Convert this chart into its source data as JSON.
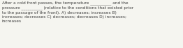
{
  "text": "After a cold front passes, the temperature __________ and the\npressure __________ (relative to the conditions that existed prior\nto the passage of the front). A) decreases; increases B)\nincreases; decreases C) decreases; decreases D) increases;\nincreases",
  "background_color": "#f5f5f0",
  "text_color": "#404040",
  "font_size": 4.2,
  "linespacing": 1.35
}
